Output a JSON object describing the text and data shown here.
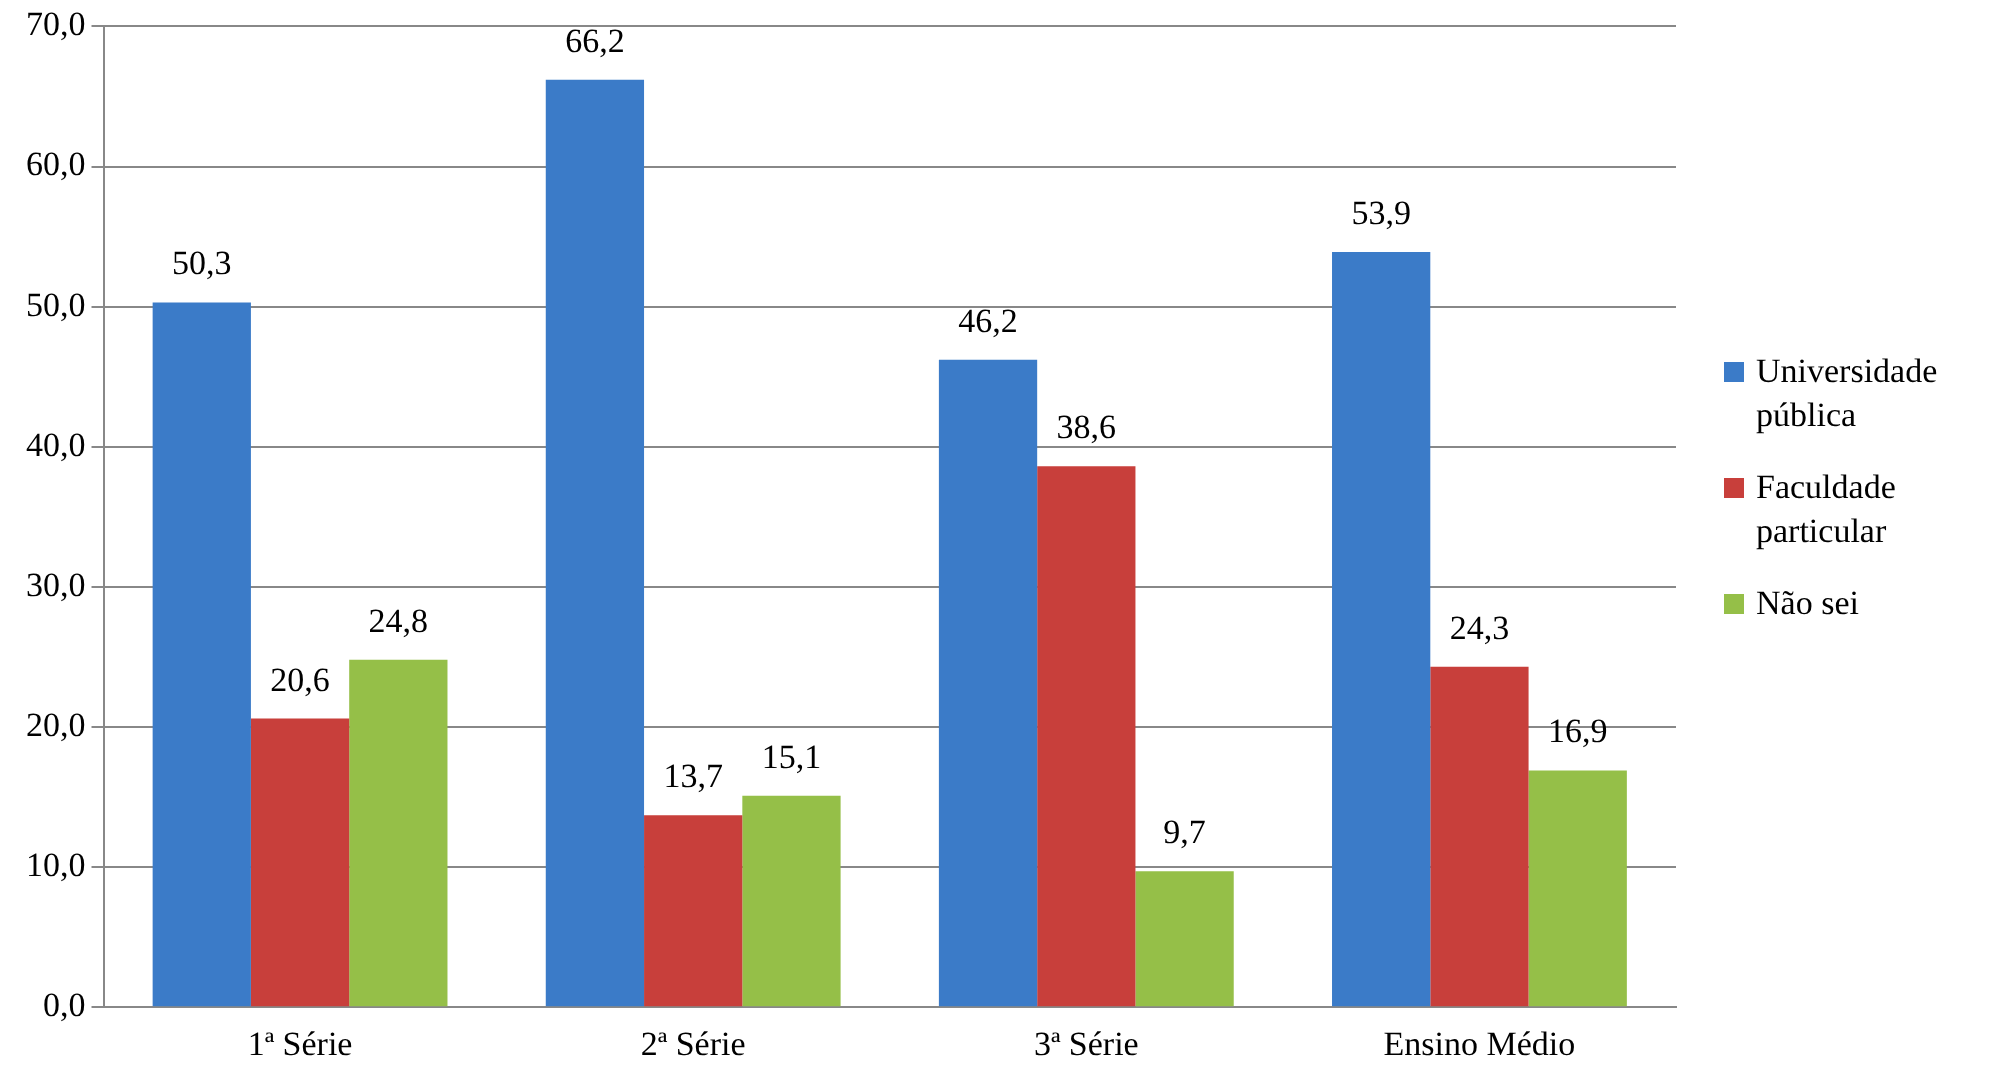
{
  "chart_data": {
    "type": "bar",
    "categories": [
      "1ª Série",
      "2ª Série",
      "3ª Série",
      "Ensino Médio"
    ],
    "series": [
      {
        "name": "Universidade pública",
        "color": "#3b7bc8",
        "values": [
          50.3,
          66.2,
          46.2,
          53.9
        ],
        "value_labels": [
          "50,3",
          "66,2",
          "46,2",
          "53,9"
        ]
      },
      {
        "name": "Faculdade particular",
        "color": "#c83f3b",
        "values": [
          20.6,
          13.7,
          38.6,
          24.3
        ],
        "value_labels": [
          "20,6",
          "13,7",
          "38,6",
          "24,3"
        ]
      },
      {
        "name": "Não sei",
        "color": "#95bf48",
        "values": [
          24.8,
          15.1,
          9.7,
          16.9
        ],
        "value_labels": [
          "24,8",
          "15,1",
          "9,7",
          "16,9"
        ]
      }
    ],
    "ylim": [
      0,
      70
    ],
    "yticks": [
      {
        "value": 0,
        "label": "0,0"
      },
      {
        "value": 10,
        "label": "10,0"
      },
      {
        "value": 20,
        "label": "20,0"
      },
      {
        "value": 30,
        "label": "30,0"
      },
      {
        "value": 40,
        "label": "40,0"
      },
      {
        "value": 50,
        "label": "50,0"
      },
      {
        "value": 60,
        "label": "60,0"
      },
      {
        "value": 70,
        "label": "70,0"
      }
    ],
    "grid": "y",
    "legend": "right"
  }
}
